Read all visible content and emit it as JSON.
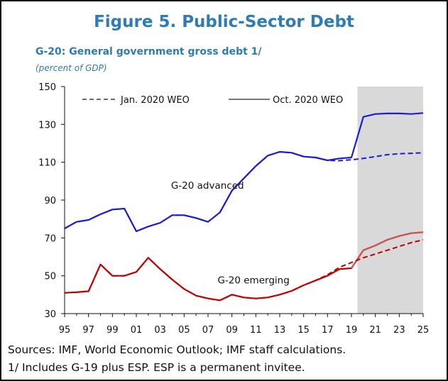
{
  "figure": {
    "title": "Figure 5. Public-Sector Debt",
    "subtitle": "G-20: General government gross debt 1/",
    "units": "(percent of GDP)",
    "sources": "Sources: IMF, World Economic Outlook; IMF staff calculations.",
    "note": "1/ Includes G-19 plus ESP. ESP is a permanent invitee."
  },
  "chart_data": {
    "type": "line",
    "x_tick_labels": [
      "95",
      "97",
      "99",
      "01",
      "03",
      "05",
      "07",
      "09",
      "11",
      "13",
      "15",
      "17",
      "19",
      "21",
      "23",
      "25"
    ],
    "x_ticks": [
      1995,
      1997,
      1999,
      2001,
      2003,
      2005,
      2007,
      2009,
      2011,
      2013,
      2015,
      2017,
      2019,
      2021,
      2023,
      2025
    ],
    "xlim": [
      1995,
      2025
    ],
    "ylim": [
      30,
      150
    ],
    "y_ticks": [
      30,
      50,
      70,
      90,
      110,
      130,
      150
    ],
    "shaded_region": {
      "from": 2019.5,
      "to": 2025,
      "color": "#d9d9d9"
    },
    "grid": false,
    "legend_position": "top",
    "legend": [
      {
        "label": "Jan. 2020 WEO",
        "style": "dashed"
      },
      {
        "label": "Oct. 2020 WEO",
        "style": "solid"
      }
    ],
    "annotations": [
      {
        "text": "G-20 advanced",
        "x": 2003.9,
        "y": 96
      },
      {
        "text": "G-20 emerging",
        "x": 2007.8,
        "y": 46
      }
    ],
    "x": [
      1995,
      1996,
      1997,
      1998,
      1999,
      2000,
      2001,
      2002,
      2003,
      2004,
      2005,
      2006,
      2007,
      2008,
      2009,
      2010,
      2011,
      2012,
      2013,
      2014,
      2015,
      2016,
      2017,
      2018,
      2019,
      2020,
      2021,
      2022,
      2023,
      2024,
      2025
    ],
    "series": [
      {
        "group": "G-20 advanced",
        "vintage": "Oct. 2020 WEO",
        "style": "solid",
        "color": "#1c1cd6",
        "values": [
          75,
          78.5,
          79.5,
          82.5,
          85,
          85.5,
          73.5,
          76,
          78,
          82,
          82,
          80.5,
          78.5,
          83.5,
          95,
          101.5,
          108,
          113.5,
          115.5,
          115,
          113,
          112.5,
          111,
          112,
          112.5,
          134,
          135.5,
          135.8,
          135.8,
          135.5,
          136
        ]
      },
      {
        "group": "G-20 advanced",
        "vintage": "Jan. 2020 WEO",
        "style": "dashed",
        "color": "#1c1cd6",
        "values": [
          75,
          78.5,
          79.5,
          82.5,
          85,
          85.5,
          73.5,
          76,
          78,
          82,
          82,
          80.5,
          78.5,
          83.5,
          95,
          101.5,
          108,
          113.5,
          115.5,
          115,
          113,
          112.5,
          111,
          110.8,
          111.3,
          112,
          113,
          114,
          114.5,
          114.7,
          115
        ]
      },
      {
        "group": "G-20 emerging",
        "vintage": "Oct. 2020 WEO",
        "style": "solid",
        "color": "#c00000",
        "values": [
          41,
          41.3,
          41.8,
          56,
          50,
          50,
          52,
          59.5,
          53.5,
          48,
          43,
          39.5,
          38,
          37,
          40,
          38.5,
          38,
          38.5,
          40,
          42,
          45,
          47.5,
          50,
          53.5,
          54,
          63.5,
          66,
          69,
          71,
          72.5,
          73
        ]
      },
      {
        "group": "G-20 emerging",
        "vintage": "Jan. 2020 WEO",
        "style": "dashed",
        "color": "#c00000",
        "values": [
          41,
          41.3,
          41.8,
          56,
          50,
          50,
          52,
          59.5,
          53.5,
          48,
          43,
          39.5,
          38,
          37,
          40,
          38.5,
          38,
          38.5,
          40,
          42,
          45,
          47.5,
          50.5,
          54.5,
          57,
          59.5,
          61.5,
          63.5,
          65.5,
          67.5,
          69
        ]
      }
    ]
  }
}
